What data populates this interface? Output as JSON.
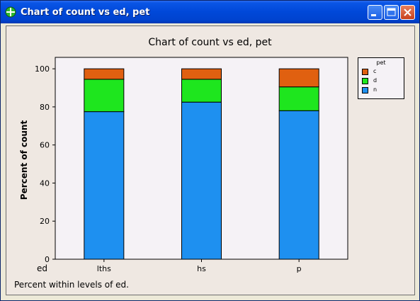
{
  "window": {
    "title": "Chart of count vs ed, pet",
    "icon": "minitab-app-icon",
    "buttons": [
      "minimize-icon",
      "maximize-icon",
      "close-icon"
    ]
  },
  "chart_data": {
    "type": "bar",
    "stacked": true,
    "title": "Chart of count vs ed, pet",
    "xlabel": "ed",
    "ylabel": "Percent of count",
    "categories": [
      "lths",
      "hs",
      "p"
    ],
    "series": [
      {
        "name": "n",
        "values": [
          77.5,
          82.5,
          78.0
        ],
        "color": "#1e90f0"
      },
      {
        "name": "d",
        "values": [
          17.0,
          12.0,
          12.5
        ],
        "color": "#1ee61e"
      },
      {
        "name": "c",
        "values": [
          5.5,
          5.5,
          9.5
        ],
        "color": "#e06010"
      }
    ],
    "ylim": [
      0,
      106
    ],
    "yticks": [
      0,
      20,
      40,
      60,
      80,
      100
    ],
    "legend": {
      "title": "pet",
      "order": [
        "c",
        "d",
        "n"
      ],
      "position": "right"
    },
    "grid": false,
    "plot_background": "#f5f2f6",
    "footnote": "Percent within levels of ed."
  }
}
